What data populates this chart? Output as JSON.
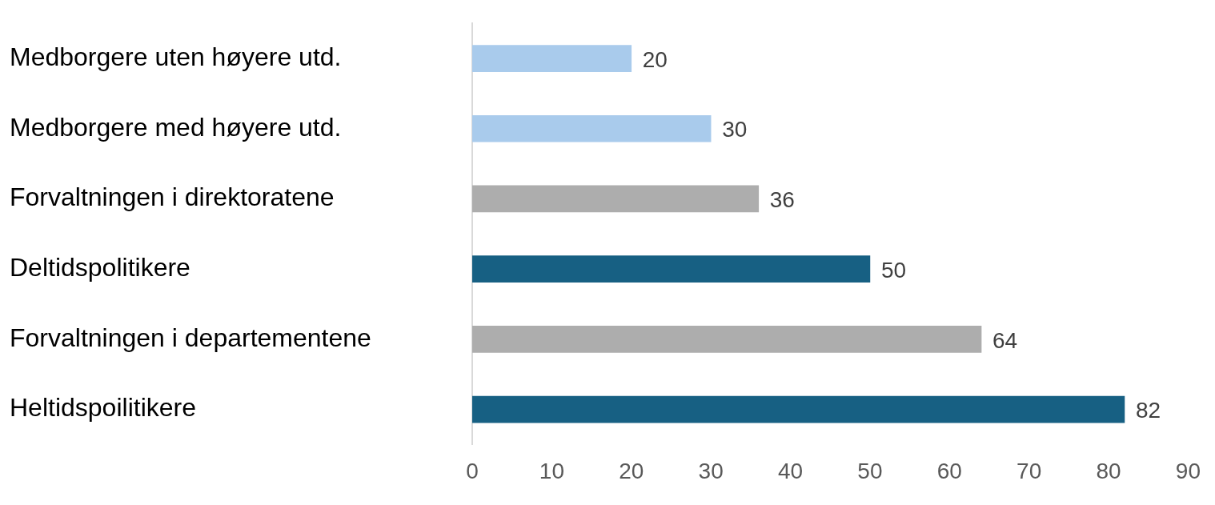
{
  "chart_data": {
    "type": "bar",
    "orientation": "horizontal",
    "categories": [
      "Medborgere uten høyere utd.",
      "Medborgere med høyere utd.",
      "Forvaltningen i direktoratene",
      "Deltidspolitikere",
      "Forvaltningen i departementene",
      "Heltidspoilitikere"
    ],
    "values": [
      20,
      30,
      36,
      50,
      64,
      82
    ],
    "colors": [
      "#a9cbec",
      "#a9cbec",
      "#adadad",
      "#176083",
      "#adadad",
      "#176083"
    ],
    "xlim": [
      0,
      90
    ],
    "xticks": [
      0,
      10,
      20,
      30,
      40,
      50,
      60,
      70,
      80,
      90
    ],
    "data_labels": true,
    "grid": false,
    "legend": false
  }
}
